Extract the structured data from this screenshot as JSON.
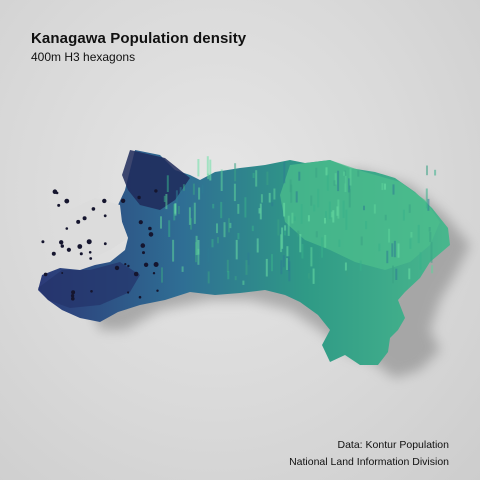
{
  "map": {
    "title": "Kanagawa Population density",
    "subtitle": "400m H3 hexagons",
    "credits": {
      "line1": "Data: Kontur Population",
      "line2": "National Land Information Division"
    },
    "colors": {
      "background": "#d9d9d9",
      "low": "#1a1a3a",
      "mid_low": "#2c3a78",
      "mid": "#2f6e94",
      "mid_high": "#2f8f8a",
      "high": "#4fc08d",
      "shadow": "#7d7d7d"
    }
  }
}
